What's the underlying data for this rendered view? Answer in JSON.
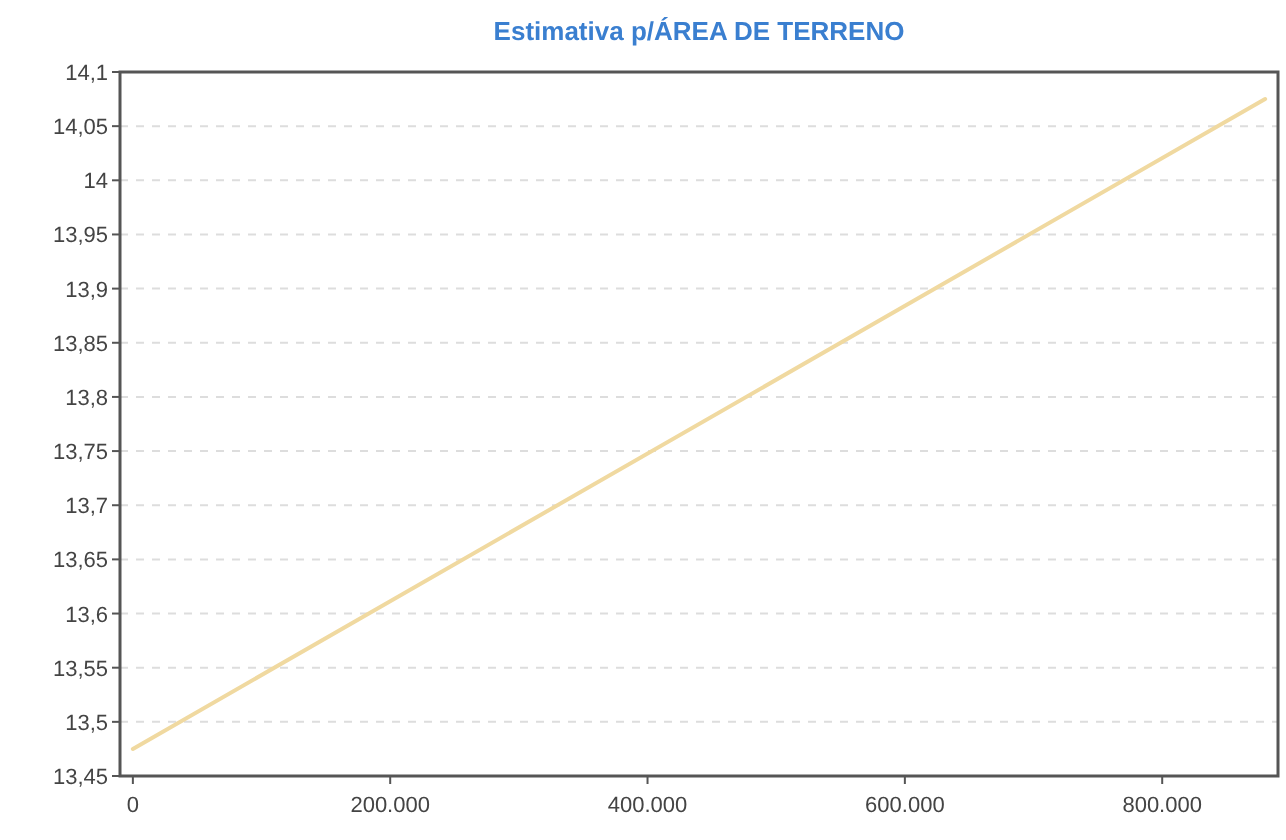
{
  "chart_data": {
    "type": "line",
    "title": "Estimativa p/ÁREA DE TERRENO",
    "series": [
      {
        "color": "#f0d9a0",
        "x": [
          0,
          880000
        ],
        "values": [
          13.475,
          14.075
        ]
      }
    ],
    "xlim": [
      -10000,
      890000
    ],
    "xticks": [
      {
        "value": 0,
        "label": "0"
      },
      {
        "value": 200000,
        "label": "200.000"
      },
      {
        "value": 400000,
        "label": "400.000"
      },
      {
        "value": 600000,
        "label": "600.000"
      },
      {
        "value": 800000,
        "label": "800.000"
      }
    ],
    "ylim": [
      13.45,
      14.1
    ],
    "yticks": [
      {
        "value": 13.45,
        "label": "13,45"
      },
      {
        "value": 13.5,
        "label": "13,5"
      },
      {
        "value": 13.55,
        "label": "13,55"
      },
      {
        "value": 13.6,
        "label": "13,6"
      },
      {
        "value": 13.65,
        "label": "13,65"
      },
      {
        "value": 13.7,
        "label": "13,7"
      },
      {
        "value": 13.75,
        "label": "13,75"
      },
      {
        "value": 13.8,
        "label": "13,8"
      },
      {
        "value": 13.85,
        "label": "13,85"
      },
      {
        "value": 13.9,
        "label": "13,9"
      },
      {
        "value": 13.95,
        "label": "13,95"
      },
      {
        "value": 14,
        "label": "14"
      },
      {
        "value": 14.05,
        "label": "14,05"
      },
      {
        "value": 14.1,
        "label": "14,1"
      }
    ],
    "grid": "y",
    "line_style": "solid"
  }
}
